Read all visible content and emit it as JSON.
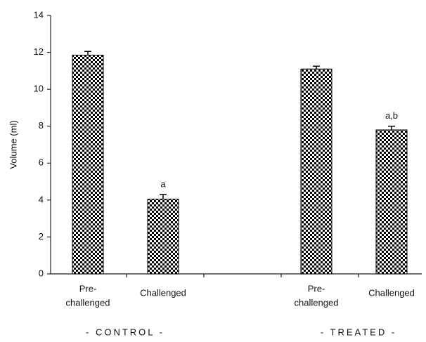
{
  "chart_data": {
    "type": "bar",
    "y_label": "Volume (ml)",
    "categories": [
      [
        "Pre-",
        "challenged"
      ],
      [
        "Challenged"
      ],
      [
        "Pre-",
        "challenged"
      ],
      [
        "Challenged"
      ]
    ],
    "groups": [
      "- CONTROL -",
      "- TREATED -"
    ],
    "values": [
      11.85,
      4.05,
      11.1,
      7.8
    ],
    "errors": [
      0.2,
      0.25,
      0.15,
      0.2
    ],
    "labels": [
      null,
      "a",
      null,
      "a,b"
    ],
    "color": "#000000",
    "ylim": [
      0,
      14
    ],
    "yticks": [
      0,
      2,
      4,
      6,
      8,
      10,
      12,
      14
    ],
    "grid": false
  }
}
